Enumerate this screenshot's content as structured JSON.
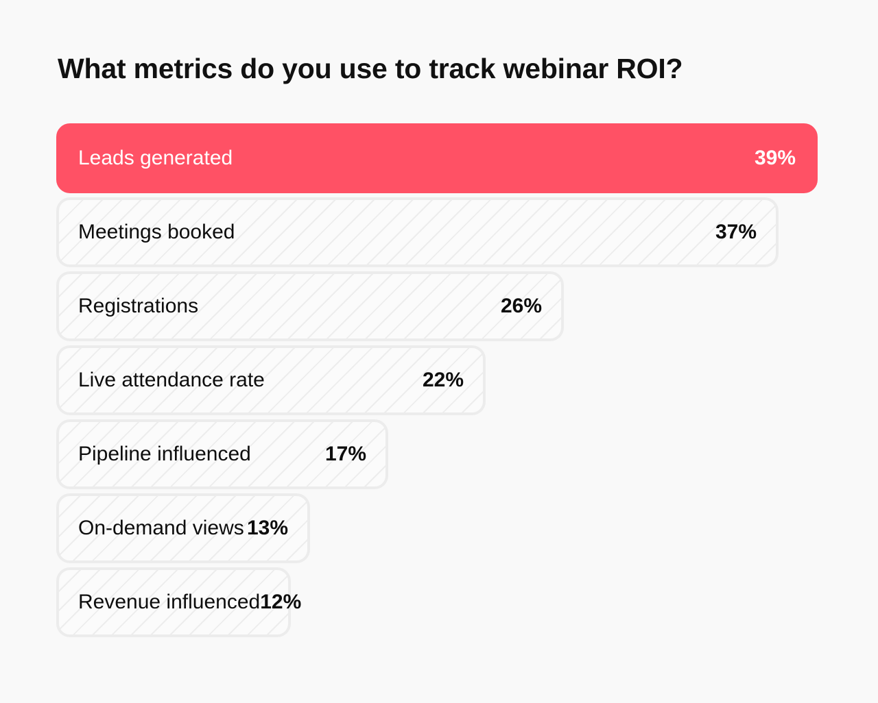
{
  "chart_data": {
    "type": "bar",
    "orientation": "horizontal",
    "title": "What metrics do you use to track webinar ROI?",
    "categories": [
      "Leads generated",
      "Meetings booked",
      "Registrations",
      "Live attendance rate",
      "Pipeline influenced",
      "On-demand views",
      "Revenue influenced"
    ],
    "values": [
      39,
      37,
      26,
      22,
      17,
      13,
      12
    ],
    "value_labels": [
      "39%",
      "37%",
      "26%",
      "22%",
      "17%",
      "13%",
      "12%"
    ],
    "highlight_index": 0,
    "colors": {
      "highlight": "#ff5165",
      "bar_border": "#ececec",
      "text": "#0d0d0d",
      "highlight_text": "#ffffff"
    }
  }
}
